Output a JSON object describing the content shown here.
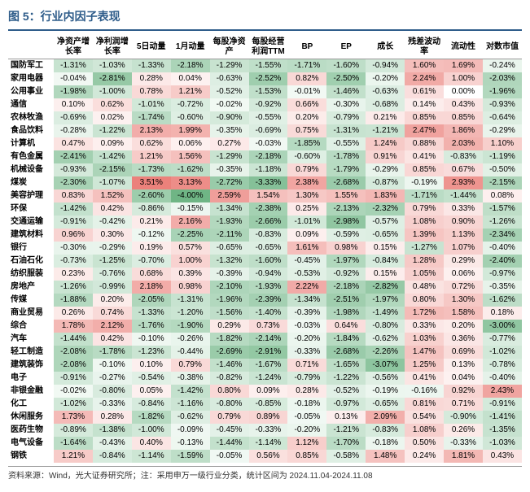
{
  "title": "图 5：行业内因子表现",
  "footer": "资料来源：Wind，光大证券研究所；注：采用申万一级行业分类，统计区间为 2024.11.04-2024.11.08",
  "columns": [
    "净资产增长率",
    "净利润增长率",
    "5日动量",
    "1月动量",
    "每股净资产",
    "每股经营利润TTM",
    "BP",
    "EP",
    "成长",
    "残差波动率",
    "流动性",
    "对数市值"
  ],
  "rows": [
    "国防军工",
    "家用电器",
    "公用事业",
    "通信",
    "农林牧渔",
    "食品饮料",
    "计算机",
    "有色金属",
    "机械设备",
    "煤炭",
    "美容护理",
    "环保",
    "交通运输",
    "建筑材料",
    "银行",
    "石油石化",
    "纺织服装",
    "房地产",
    "传媒",
    "商业贸易",
    "综合",
    "汽车",
    "轻工制造",
    "建筑装饰",
    "电子",
    "非银金融",
    "化工",
    "休闲服务",
    "医药生物",
    "电气设备",
    "钢铁"
  ],
  "values": [
    [
      "-1.31%",
      "-1.03%",
      "-1.33%",
      "-2.18%",
      "-1.29%",
      "-1.55%",
      "-1.71%",
      "-1.60%",
      "-0.94%",
      "1.60%",
      "1.69%",
      "-0.24%"
    ],
    [
      "-0.04%",
      "-2.81%",
      "0.28%",
      "0.04%",
      "-0.63%",
      "-2.52%",
      "0.82%",
      "-2.50%",
      "-0.20%",
      "2.24%",
      "1.00%",
      "-2.03%"
    ],
    [
      "-1.98%",
      "-1.00%",
      "0.78%",
      "1.21%",
      "-0.52%",
      "-1.53%",
      "-0.01%",
      "-1.46%",
      "-0.63%",
      "0.61%",
      "0.00%",
      "-1.96%"
    ],
    [
      "0.10%",
      "0.62%",
      "-1.01%",
      "-0.72%",
      "-0.02%",
      "-0.92%",
      "0.66%",
      "-0.30%",
      "-0.68%",
      "0.14%",
      "0.43%",
      "-0.93%"
    ],
    [
      "-0.69%",
      "0.02%",
      "-1.74%",
      "-0.60%",
      "-0.90%",
      "-0.55%",
      "0.20%",
      "-0.79%",
      "0.21%",
      "0.85%",
      "0.85%",
      "-0.64%"
    ],
    [
      "-0.28%",
      "-1.22%",
      "2.13%",
      "1.99%",
      "-0.35%",
      "-0.69%",
      "0.75%",
      "-1.31%",
      "-1.21%",
      "2.47%",
      "1.86%",
      "-0.29%"
    ],
    [
      "0.47%",
      "0.09%",
      "0.62%",
      "0.06%",
      "0.27%",
      "-0.03%",
      "-1.85%",
      "-0.55%",
      "1.24%",
      "0.88%",
      "2.03%",
      "1.10%"
    ],
    [
      "-2.41%",
      "-1.42%",
      "1.21%",
      "1.56%",
      "-1.29%",
      "-2.18%",
      "-0.60%",
      "-1.78%",
      "0.91%",
      "0.41%",
      "-0.83%",
      "-1.19%"
    ],
    [
      "-0.93%",
      "-2.15%",
      "-1.73%",
      "-1.62%",
      "-0.35%",
      "-1.18%",
      "0.79%",
      "-1.79%",
      "-0.29%",
      "0.85%",
      "0.67%",
      "-0.50%"
    ],
    [
      "-2.30%",
      "-1.07%",
      "3.51%",
      "3.13%",
      "-2.72%",
      "-3.33%",
      "2.38%",
      "-2.68%",
      "-0.87%",
      "-0.19%",
      "2.93%",
      "-2.15%"
    ],
    [
      "0.83%",
      "1.52%",
      "-2.60%",
      "-4.00%",
      "2.59%",
      "1.54%",
      "1.30%",
      "1.55%",
      "1.83%",
      "-1.71%",
      "-1.44%",
      "0.08%"
    ],
    [
      "-1.42%",
      "0.42%",
      "-0.86%",
      "-0.15%",
      "-1.34%",
      "-2.38%",
      "0.25%",
      "-2.13%",
      "-2.32%",
      "0.79%",
      "0.33%",
      "-1.57%"
    ],
    [
      "-0.91%",
      "-0.42%",
      "0.21%",
      "2.16%",
      "-1.93%",
      "-2.66%",
      "-1.01%",
      "-2.98%",
      "-0.57%",
      "1.08%",
      "0.90%",
      "-1.26%"
    ],
    [
      "0.96%",
      "0.30%",
      "-0.12%",
      "-2.25%",
      "-2.11%",
      "-0.83%",
      "0.09%",
      "-0.59%",
      "-0.65%",
      "1.39%",
      "1.13%",
      "-2.34%"
    ],
    [
      "-0.30%",
      "-0.29%",
      "0.19%",
      "0.57%",
      "-0.65%",
      "-0.65%",
      "1.61%",
      "0.98%",
      "0.15%",
      "-1.27%",
      "1.07%",
      "-0.40%"
    ],
    [
      "-0.73%",
      "-1.25%",
      "-0.70%",
      "1.00%",
      "-1.32%",
      "-1.60%",
      "-0.45%",
      "-1.97%",
      "-0.84%",
      "1.28%",
      "0.29%",
      "-2.40%"
    ],
    [
      "0.23%",
      "-0.76%",
      "0.68%",
      "0.39%",
      "-0.39%",
      "-0.94%",
      "-0.53%",
      "-0.92%",
      "0.15%",
      "1.05%",
      "0.06%",
      "-0.97%"
    ],
    [
      "-1.26%",
      "-0.99%",
      "2.18%",
      "0.98%",
      "-2.10%",
      "-1.93%",
      "2.22%",
      "-2.18%",
      "-2.82%",
      "0.48%",
      "0.72%",
      "-0.35%"
    ],
    [
      "-1.88%",
      "0.20%",
      "-2.05%",
      "-1.31%",
      "-1.96%",
      "-2.39%",
      "-1.34%",
      "-2.51%",
      "-1.97%",
      "0.80%",
      "1.30%",
      "-1.62%"
    ],
    [
      "0.26%",
      "0.74%",
      "-1.33%",
      "-1.20%",
      "-1.56%",
      "-1.40%",
      "-0.39%",
      "-1.98%",
      "-1.49%",
      "1.72%",
      "1.58%",
      "0.18%"
    ],
    [
      "1.78%",
      "2.12%",
      "-1.76%",
      "-1.90%",
      "0.29%",
      "0.73%",
      "-0.03%",
      "0.64%",
      "-0.80%",
      "0.33%",
      "0.20%",
      "-3.00%"
    ],
    [
      "-1.44%",
      "0.42%",
      "-0.10%",
      "-0.26%",
      "-1.82%",
      "-2.14%",
      "-0.20%",
      "-1.84%",
      "-0.62%",
      "1.03%",
      "0.36%",
      "-0.77%"
    ],
    [
      "-2.08%",
      "-1.78%",
      "-1.23%",
      "-0.44%",
      "-2.69%",
      "-2.91%",
      "-0.33%",
      "-2.68%",
      "-2.26%",
      "1.47%",
      "0.69%",
      "-1.02%"
    ],
    [
      "-2.08%",
      "-0.10%",
      "0.10%",
      "0.79%",
      "-1.46%",
      "-1.67%",
      "0.71%",
      "-1.65%",
      "-3.07%",
      "1.25%",
      "0.13%",
      "-0.78%"
    ],
    [
      "-0.91%",
      "-0.27%",
      "-0.54%",
      "-0.38%",
      "-0.82%",
      "-1.24%",
      "-0.79%",
      "-1.22%",
      "-0.56%",
      "0.41%",
      "0.04%",
      "-0.40%"
    ],
    [
      "-0.02%",
      "-0.80%",
      "0.05%",
      "-1.42%",
      "0.80%",
      "0.09%",
      "0.28%",
      "-0.52%",
      "-0.19%",
      "-0.16%",
      "0.92%",
      "2.43%"
    ],
    [
      "-1.02%",
      "-0.33%",
      "-0.84%",
      "-1.16%",
      "-0.80%",
      "-0.85%",
      "-0.18%",
      "-0.97%",
      "-0.65%",
      "0.81%",
      "0.71%",
      "-0.91%"
    ],
    [
      "1.73%",
      "0.28%",
      "-1.82%",
      "-0.62%",
      "0.79%",
      "0.89%",
      "-0.05%",
      "0.13%",
      "2.09%",
      "0.54%",
      "-0.90%",
      "-1.41%"
    ],
    [
      "-0.89%",
      "-1.38%",
      "-1.00%",
      "-0.09%",
      "-0.45%",
      "-0.33%",
      "-0.20%",
      "-1.21%",
      "-0.83%",
      "1.08%",
      "0.26%",
      "-1.35%"
    ],
    [
      "-1.64%",
      "-0.43%",
      "0.40%",
      "-0.13%",
      "-1.44%",
      "-1.14%",
      "1.12%",
      "-1.70%",
      "-0.18%",
      "0.50%",
      "-0.33%",
      "-1.03%"
    ],
    [
      "1.21%",
      "-0.84%",
      "-1.14%",
      "-1.59%",
      "-0.05%",
      "0.56%",
      "0.85%",
      "-0.58%",
      "1.48%",
      "0.24%",
      "1.81%",
      "0.43%"
    ]
  ],
  "colorScale": {
    "min": -4.0,
    "max": 4.0,
    "posHigh": "#e8716b",
    "posLow": "#fdf2f1",
    "negHigh": "#6fb585",
    "negLow": "#f2f9f4",
    "zero": "#ffffff"
  },
  "textColor": "#000000"
}
